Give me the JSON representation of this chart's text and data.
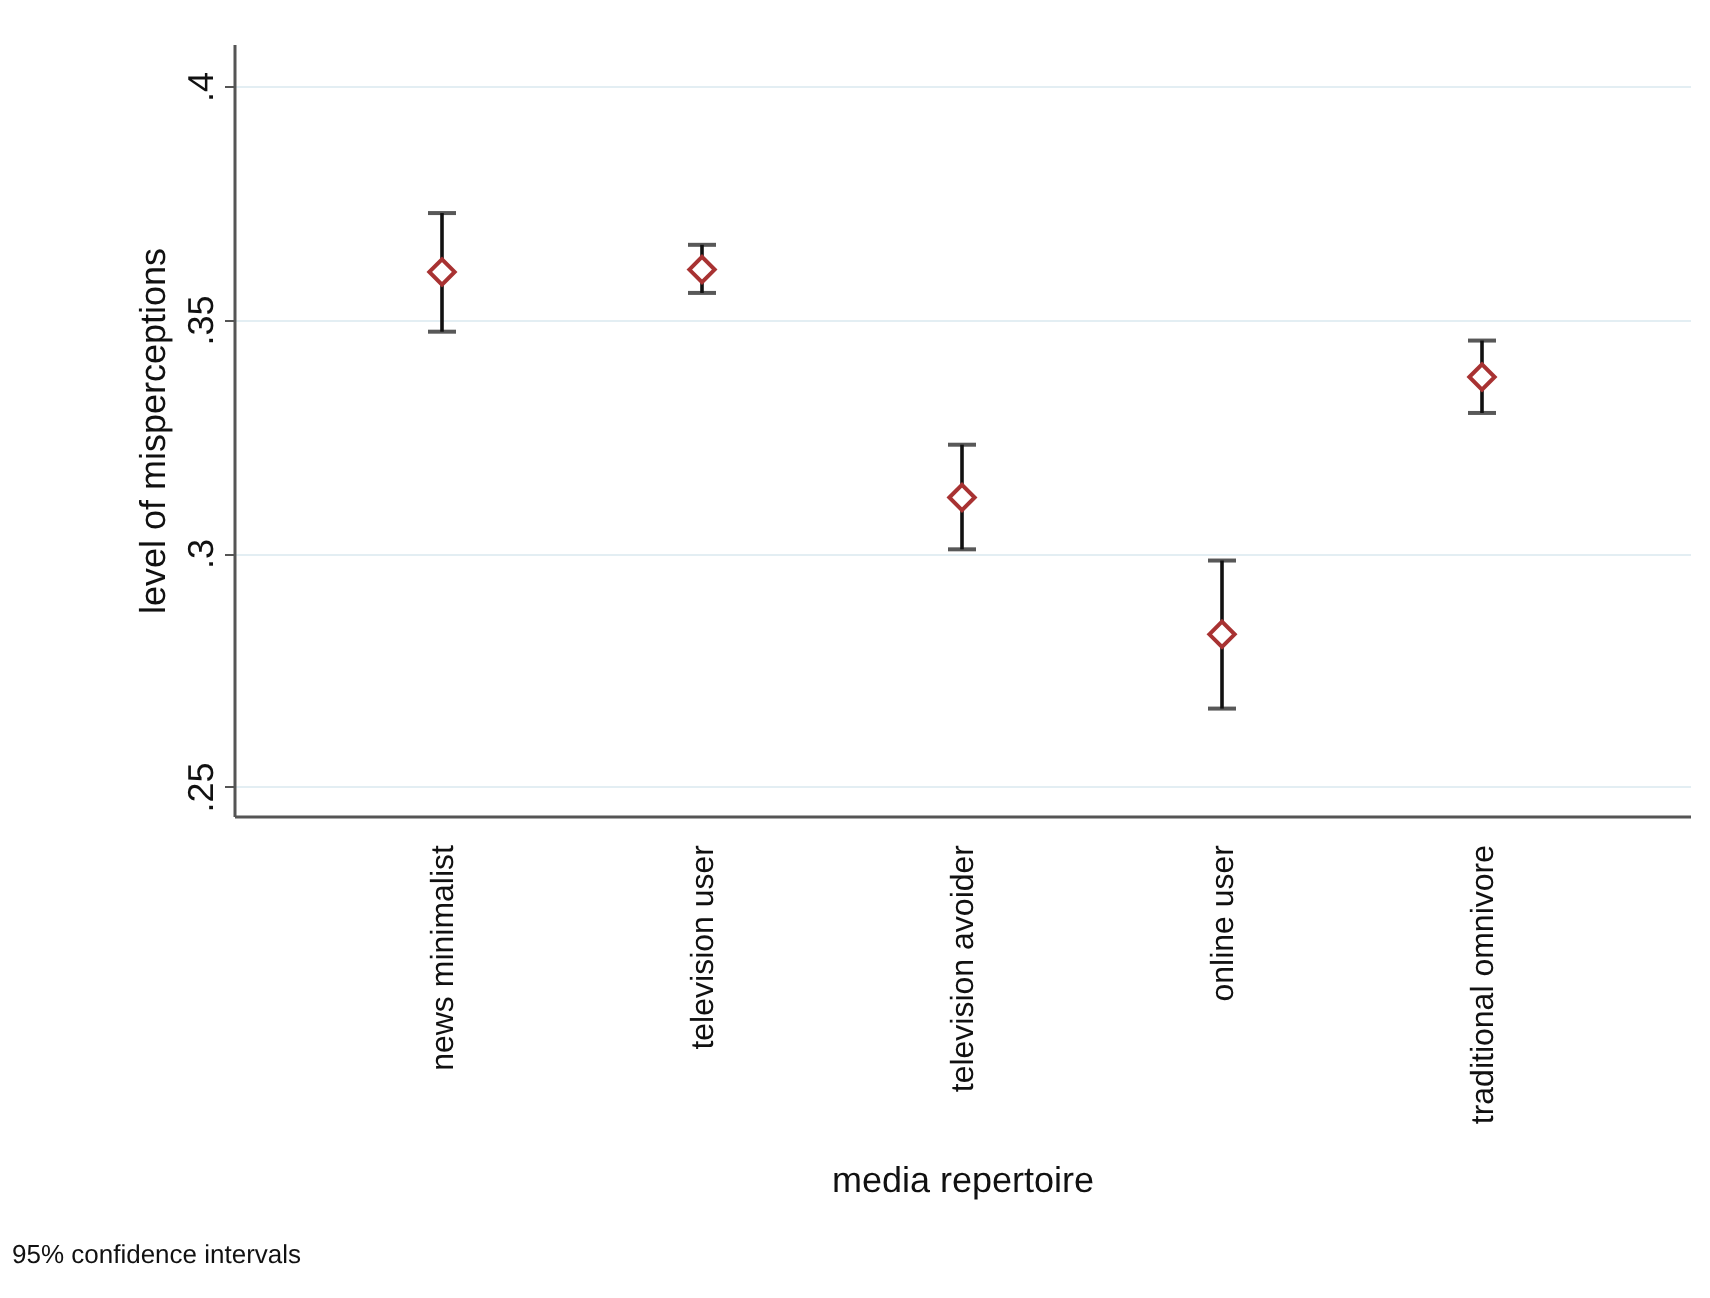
{
  "chart_data": {
    "type": "scatter",
    "xlabel": "media repertoire",
    "ylabel": "level of misperceptions",
    "categories": [
      "news minimalist",
      "television user",
      "television avoider",
      "online user",
      "traditional omnivore"
    ],
    "series": [
      {
        "color": "#a83232",
        "values": [
          0.3602,
          0.3607,
          0.3119,
          0.2826,
          0.3377
        ],
        "errors": [
          [
            0.3474,
            0.3728
          ],
          [
            0.3557,
            0.366
          ],
          [
            0.3008,
            0.3232
          ],
          [
            0.2667,
            0.2984
          ],
          [
            0.33,
            0.3455
          ]
        ]
      }
    ],
    "ylim": [
      0.2437,
      0.409
    ],
    "yticks": [
      {
        "value": 0.25,
        "label": ".25"
      },
      {
        "value": 0.3,
        "label": ".3"
      },
      {
        "value": 0.35,
        "label": ".35"
      },
      {
        "value": 0.4,
        "label": ".4"
      }
    ],
    "grid": "y",
    "marker": "diamond",
    "annotations": [
      "95% confidence intervals"
    ]
  }
}
